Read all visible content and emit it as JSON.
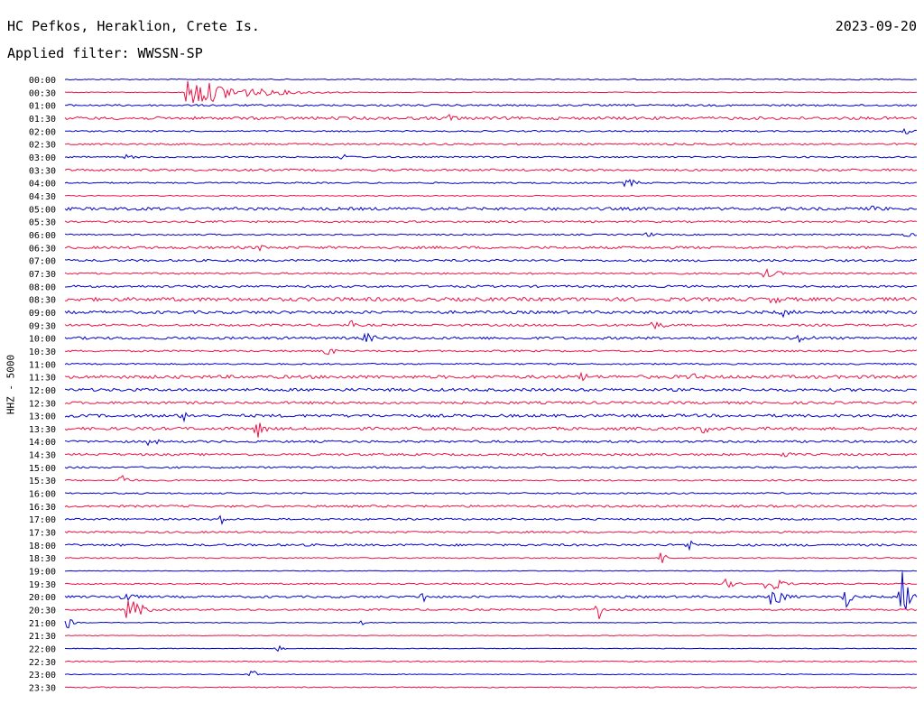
{
  "header": {
    "station": "HC Pefkos, Heraklion, Crete Is.",
    "date": "2023-09-20",
    "filter": "Applied filter: WWSSN-SP"
  },
  "chart_data": {
    "type": "line",
    "title": "HC Pefkos, Heraklion, Crete Is.",
    "subtitle": "Applied filter: WWSSN-SP",
    "ylabel": "HHZ - 5000",
    "xlabel": "",
    "colors": [
      "#0000cc",
      "#ee1144"
    ],
    "row_labels": [
      "00:00",
      "00:30",
      "01:00",
      "01:30",
      "02:00",
      "02:30",
      "03:00",
      "03:30",
      "04:00",
      "04:30",
      "05:00",
      "05:30",
      "06:00",
      "06:30",
      "07:00",
      "07:30",
      "08:00",
      "08:30",
      "09:00",
      "09:30",
      "10:00",
      "10:30",
      "11:00",
      "11:30",
      "12:00",
      "12:30",
      "13:00",
      "13:30",
      "14:00",
      "14:30",
      "15:00",
      "15:30",
      "16:00",
      "16:30",
      "17:00",
      "17:30",
      "18:00",
      "18:30",
      "19:00",
      "19:30",
      "20:00",
      "20:30",
      "21:00",
      "21:30",
      "22:00",
      "22:30",
      "23:00",
      "23:30"
    ],
    "row_minutes": 30,
    "noise_level": [
      0.6,
      0.4,
      1.0,
      1.6,
      0.8,
      1.0,
      0.8,
      1.2,
      0.8,
      0.6,
      1.6,
      1.0,
      0.8,
      1.4,
      1.2,
      1.0,
      1.2,
      2.0,
      1.6,
      1.2,
      1.4,
      1.0,
      0.8,
      1.8,
      1.6,
      1.4,
      1.6,
      1.6,
      1.2,
      1.2,
      1.0,
      0.8,
      0.8,
      1.2,
      1.0,
      1.0,
      1.2,
      0.6,
      0.4,
      0.8,
      1.2,
      1.0,
      0.4,
      0.4,
      0.4,
      0.6,
      0.4,
      0.6
    ],
    "events": [
      {
        "row": 1,
        "minute": 4.2,
        "amp": 18,
        "dur": 7.0
      },
      {
        "row": 3,
        "minute": 13.5,
        "amp": 5,
        "dur": 1.2
      },
      {
        "row": 4,
        "minute": 29.6,
        "amp": 4,
        "dur": 0.8
      },
      {
        "row": 6,
        "minute": 2.2,
        "amp": 3,
        "dur": 1.0
      },
      {
        "row": 6,
        "minute": 9.8,
        "amp": 3,
        "dur": 1.2
      },
      {
        "row": 8,
        "minute": 19.8,
        "amp": 6,
        "dur": 1.0
      },
      {
        "row": 10,
        "minute": 28.5,
        "amp": 4,
        "dur": 1.5
      },
      {
        "row": 12,
        "minute": 20.5,
        "amp": 3,
        "dur": 1.0
      },
      {
        "row": 12,
        "minute": 29.7,
        "amp": 3,
        "dur": 0.8
      },
      {
        "row": 13,
        "minute": 6.8,
        "amp": 4,
        "dur": 1.2
      },
      {
        "row": 15,
        "minute": 24.7,
        "amp": 5,
        "dur": 1.5
      },
      {
        "row": 17,
        "minute": 25.0,
        "amp": 5,
        "dur": 1.5
      },
      {
        "row": 18,
        "minute": 25.3,
        "amp": 5,
        "dur": 1.2
      },
      {
        "row": 19,
        "minute": 20.7,
        "amp": 5,
        "dur": 1.5
      },
      {
        "row": 19,
        "minute": 10.1,
        "amp": 7,
        "dur": 0.3
      },
      {
        "row": 20,
        "minute": 10.6,
        "amp": 6,
        "dur": 1.2
      },
      {
        "row": 20,
        "minute": 25.9,
        "amp": 5,
        "dur": 1.5
      },
      {
        "row": 21,
        "minute": 9.2,
        "amp": 7,
        "dur": 0.8
      },
      {
        "row": 23,
        "minute": 18.2,
        "amp": 6,
        "dur": 1.0
      },
      {
        "row": 23,
        "minute": 22.0,
        "amp": 5,
        "dur": 1.5
      },
      {
        "row": 26,
        "minute": 4.2,
        "amp": 6,
        "dur": 1.0
      },
      {
        "row": 27,
        "minute": 6.8,
        "amp": 10,
        "dur": 0.8
      },
      {
        "row": 27,
        "minute": 22.5,
        "amp": 6,
        "dur": 1.0
      },
      {
        "row": 28,
        "minute": 3.0,
        "amp": 5,
        "dur": 1.0
      },
      {
        "row": 29,
        "minute": 25.3,
        "amp": 4,
        "dur": 1.0
      },
      {
        "row": 31,
        "minute": 2.0,
        "amp": 8,
        "dur": 0.8
      },
      {
        "row": 34,
        "minute": 5.5,
        "amp": 9,
        "dur": 0.3
      },
      {
        "row": 36,
        "minute": 22.0,
        "amp": 6,
        "dur": 1.0
      },
      {
        "row": 37,
        "minute": 21.0,
        "amp": 9,
        "dur": 0.5
      },
      {
        "row": 39,
        "minute": 23.3,
        "amp": 6,
        "dur": 0.8
      },
      {
        "row": 39,
        "minute": 24.8,
        "amp": 10,
        "dur": 1.2
      },
      {
        "row": 40,
        "minute": 2.1,
        "amp": 7,
        "dur": 1.0
      },
      {
        "row": 40,
        "minute": 12.6,
        "amp": 10,
        "dur": 0.3
      },
      {
        "row": 40,
        "minute": 24.9,
        "amp": 12,
        "dur": 1.2
      },
      {
        "row": 40,
        "minute": 27.5,
        "amp": 14,
        "dur": 0.5
      },
      {
        "row": 40,
        "minute": 29.5,
        "amp": 30,
        "dur": 0.6
      },
      {
        "row": 41,
        "minute": 2.3,
        "amp": 14,
        "dur": 1.2
      },
      {
        "row": 41,
        "minute": 18.8,
        "amp": 12,
        "dur": 0.3
      },
      {
        "row": 42,
        "minute": 0.1,
        "amp": 8,
        "dur": 0.4
      },
      {
        "row": 42,
        "minute": 10.5,
        "amp": 5,
        "dur": 0.3
      },
      {
        "row": 44,
        "minute": 7.5,
        "amp": 4,
        "dur": 0.5
      },
      {
        "row": 46,
        "minute": 6.6,
        "amp": 6,
        "dur": 0.5
      }
    ]
  }
}
